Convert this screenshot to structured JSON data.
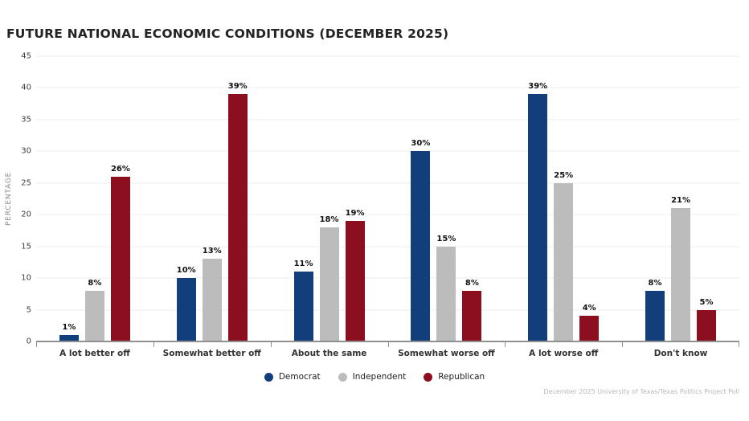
{
  "title": "FUTURE NATIONAL ECONOMIC CONDITIONS (DECEMBER 2025)",
  "footer": "December 2025 University of Texas/Texas Politics Project Poll",
  "colors": {
    "democrat": "#123e7c",
    "independent": "#bcbcbc",
    "republican": "#8b0f1f",
    "gridline": "#ececec",
    "axis": "#8f8f8f"
  },
  "chart_data": {
    "type": "bar",
    "title": "FUTURE NATIONAL ECONOMIC CONDITIONS (DECEMBER 2025)",
    "xlabel": "",
    "ylabel": "PERCENTAGE",
    "ylim": [
      0,
      45
    ],
    "yticks": [
      0,
      5,
      10,
      15,
      20,
      25,
      30,
      35,
      40,
      45
    ],
    "grid": true,
    "legend_position": "bottom",
    "value_label_suffix": "%",
    "categories": [
      "A lot better off",
      "Somewhat better off",
      "About the same",
      "Somewhat worse off",
      "A lot worse off",
      "Don't know"
    ],
    "series": [
      {
        "name": "Democrat",
        "color": "#123e7c",
        "values": [
          1,
          10,
          11,
          30,
          39,
          8
        ]
      },
      {
        "name": "Independent",
        "color": "#bcbcbc",
        "values": [
          8,
          13,
          18,
          15,
          25,
          21
        ]
      },
      {
        "name": "Republican",
        "color": "#8b0f1f",
        "values": [
          26,
          39,
          19,
          8,
          4,
          5
        ]
      }
    ]
  }
}
